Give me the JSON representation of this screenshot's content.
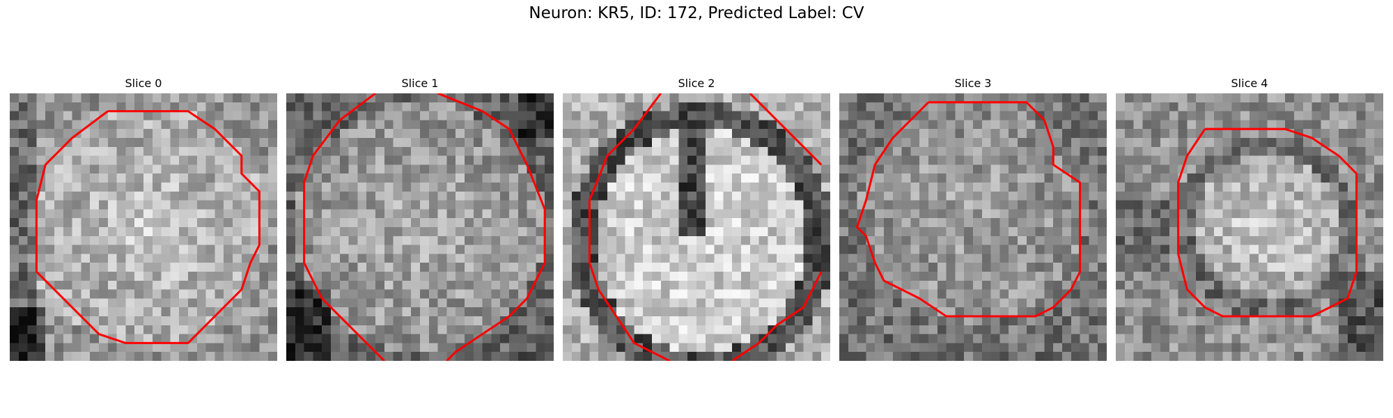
{
  "figure": {
    "title": "Neuron: KR5, ID: 172, Predicted Label: CV"
  },
  "grid_size": 30,
  "contour_color": "#ff0000",
  "slices": [
    {
      "label": "Slice 0",
      "image_description": "noisy grayscale microscopy crop; bright textured soma in centre with dark region at left edge and lower-left corner",
      "contour": [
        [
          11,
          2
        ],
        [
          20,
          2
        ],
        [
          23,
          4
        ],
        [
          26,
          7
        ],
        [
          26,
          9
        ],
        [
          28,
          11
        ],
        [
          28,
          17
        ],
        [
          27,
          19
        ],
        [
          26,
          22
        ],
        [
          23,
          25
        ],
        [
          20,
          28
        ],
        [
          13,
          28
        ],
        [
          10,
          27
        ],
        [
          6,
          23
        ],
        [
          3,
          20
        ],
        [
          3,
          12
        ],
        [
          4,
          8
        ],
        [
          7,
          5
        ]
      ]
    },
    {
      "label": "Slice 1",
      "image_description": "noisy grayscale crop; round bright soma with dark corners, contour partially exits the top and bottom edges",
      "contour": [
        [
          10,
          0
        ],
        [
          6,
          3
        ],
        [
          3,
          7
        ],
        [
          2,
          10
        ],
        [
          2,
          19
        ],
        [
          4,
          23
        ],
        [
          6,
          25
        ],
        [
          9,
          28
        ],
        [
          11,
          30
        ]
      ],
      "contour_extra": [
        [
          17,
          0
        ],
        [
          22,
          2
        ],
        [
          25,
          4
        ],
        [
          27,
          8
        ],
        [
          29,
          13
        ],
        [
          29,
          19
        ],
        [
          27,
          23
        ],
        [
          25,
          25
        ],
        [
          22,
          27
        ],
        [
          19,
          29
        ],
        [
          18,
          30
        ]
      ]
    },
    {
      "label": "Slice 2",
      "image_description": "very bright oval cell body with a dark vertical nucleolus streak near top centre and a dark ring around it",
      "contour": [
        [
          11,
          0
        ],
        [
          8,
          4
        ],
        [
          5,
          7
        ],
        [
          3,
          12
        ],
        [
          3,
          19
        ],
        [
          4,
          22
        ],
        [
          6,
          25
        ],
        [
          8,
          28
        ],
        [
          10,
          29
        ],
        [
          12,
          30
        ]
      ],
      "contour_extra": [
        [
          21,
          0
        ],
        [
          23,
          2
        ],
        [
          26,
          5
        ],
        [
          29,
          8
        ]
      ],
      "contour_extra2": [
        [
          19,
          30
        ],
        [
          22,
          28
        ],
        [
          24,
          26
        ],
        [
          27,
          24
        ],
        [
          29,
          20
        ]
      ]
    },
    {
      "label": "Slice 3",
      "image_description": "noisy grayscale crop; medium grey soma with darker speckles, rounded-square contour",
      "contour": [
        [
          10,
          1
        ],
        [
          21,
          1
        ],
        [
          23,
          3
        ],
        [
          24,
          6
        ],
        [
          24,
          8
        ],
        [
          27,
          10
        ],
        [
          27,
          20
        ],
        [
          26,
          22
        ],
        [
          24,
          24
        ],
        [
          22,
          25
        ],
        [
          12,
          25
        ],
        [
          9,
          23
        ],
        [
          5,
          21
        ],
        [
          4,
          19
        ],
        [
          3,
          16
        ],
        [
          2,
          15
        ],
        [
          3,
          12
        ],
        [
          4,
          8
        ],
        [
          6,
          5
        ],
        [
          8,
          3
        ]
      ]
    },
    {
      "label": "Slice 4",
      "image_description": "noisy grayscale crop; soma with bright centre surrounded by darker ring, dark area at lower right",
      "contour": [
        [
          10,
          4
        ],
        [
          19,
          4
        ],
        [
          22,
          5
        ],
        [
          25,
          7
        ],
        [
          27,
          9
        ],
        [
          27,
          20
        ],
        [
          26,
          23
        ],
        [
          24,
          24
        ],
        [
          22,
          25
        ],
        [
          12,
          25
        ],
        [
          10,
          24
        ],
        [
          8,
          22
        ],
        [
          7,
          18
        ],
        [
          7,
          10
        ],
        [
          8,
          7
        ]
      ]
    }
  ]
}
